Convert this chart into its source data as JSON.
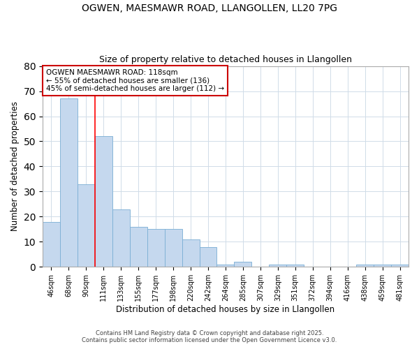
{
  "title1": "OGWEN, MAESMAWR ROAD, LLANGOLLEN, LL20 7PG",
  "title2": "Size of property relative to detached houses in Llangollen",
  "xlabel": "Distribution of detached houses by size in Llangollen",
  "ylabel": "Number of detached properties",
  "categories": [
    "46sqm",
    "68sqm",
    "90sqm",
    "111sqm",
    "133sqm",
    "155sqm",
    "177sqm",
    "198sqm",
    "220sqm",
    "242sqm",
    "264sqm",
    "285sqm",
    "307sqm",
    "329sqm",
    "351sqm",
    "372sqm",
    "394sqm",
    "416sqm",
    "438sqm",
    "459sqm",
    "481sqm"
  ],
  "values": [
    18,
    67,
    33,
    52,
    23,
    16,
    15,
    15,
    11,
    8,
    1,
    2,
    0,
    1,
    1,
    0,
    0,
    0,
    1,
    1,
    1
  ],
  "bar_color": "#c5d8ee",
  "bar_edge_color": "#7aaed4",
  "red_line_x": 2.5,
  "ylim": [
    0,
    80
  ],
  "yticks": [
    0,
    10,
    20,
    30,
    40,
    50,
    60,
    70,
    80
  ],
  "annotation_text": "OGWEN MAESMAWR ROAD: 118sqm\n← 55% of detached houses are smaller (136)\n45% of semi-detached houses are larger (112) →",
  "annotation_box_color": "#ffffff",
  "annotation_box_edge": "#cc0000",
  "footnote1": "Contains HM Land Registry data © Crown copyright and database right 2025.",
  "footnote2": "Contains public sector information licensed under the Open Government Licence v3.0.",
  "bg_color": "#ffffff",
  "plot_bg_color": "#ffffff",
  "grid_color": "#d0dce8"
}
